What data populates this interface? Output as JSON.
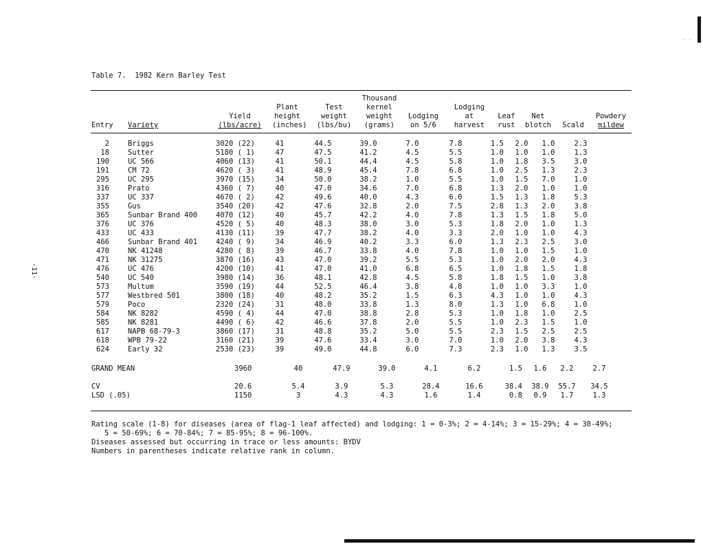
{
  "title": "Table 7.  1982 Kern Barley Test",
  "page_number": "-11-",
  "headers": {
    "entry": [
      "",
      "",
      "",
      "Entry"
    ],
    "variety": [
      "",
      "",
      "",
      "Variety"
    ],
    "yield": [
      "",
      "",
      "Yield",
      "(lbs/acre)"
    ],
    "plant_height": [
      "",
      "Plant",
      "height",
      "(inches)"
    ],
    "test_weight": [
      "",
      "Test",
      "weight",
      "(lbs/bu)"
    ],
    "kernel_weight": [
      "Thousand",
      "kernel",
      "weight",
      "(grams)"
    ],
    "lodging_56": [
      "",
      "",
      "Lodging",
      "on 5/6"
    ],
    "lodging_harvest": [
      "",
      "Lodging",
      "at",
      "harvest"
    ],
    "leaf_rust": [
      "",
      "",
      "Leaf",
      "rust"
    ],
    "net_blotch": [
      "",
      "",
      "Net",
      "blotch"
    ],
    "scald": [
      "",
      "",
      "",
      "Scald"
    ],
    "powdery_mildew": [
      "",
      "",
      "Powdery",
      "mildew"
    ]
  },
  "rows": [
    {
      "entry": "2",
      "variety": "Briggs",
      "yield": "3020 (22)",
      "plant_height": "41",
      "test_weight": "44.5",
      "kernel_weight": "39.0",
      "lodging_56": "7.0",
      "lodging_harvest": "7.8",
      "leaf_rust": "1.5",
      "net_blotch": "2.0",
      "scald": "1.0",
      "powdery_mildew": "2.3"
    },
    {
      "entry": "18",
      "variety": "Sutter",
      "yield": "5180 ( 1)",
      "plant_height": "47",
      "test_weight": "47.5",
      "kernel_weight": "41.2",
      "lodging_56": "4.5",
      "lodging_harvest": "5.5",
      "leaf_rust": "1.0",
      "net_blotch": "1.0",
      "scald": "1.0",
      "powdery_mildew": "1.3"
    },
    {
      "entry": "190",
      "variety": "UC 566",
      "yield": "4060 (13)",
      "plant_height": "41",
      "test_weight": "50.1",
      "kernel_weight": "44.4",
      "lodging_56": "4.5",
      "lodging_harvest": "5.8",
      "leaf_rust": "1.0",
      "net_blotch": "1.8",
      "scald": "3.5",
      "powdery_mildew": "3.0"
    },
    {
      "entry": "191",
      "variety": "CM 72",
      "yield": "4620 ( 3)",
      "plant_height": "41",
      "test_weight": "48.9",
      "kernel_weight": "45.4",
      "lodging_56": "7.8",
      "lodging_harvest": "6.8",
      "leaf_rust": "1.0",
      "net_blotch": "2.5",
      "scald": "1.3",
      "powdery_mildew": "2.3"
    },
    {
      "entry": "295",
      "variety": "UC 295",
      "yield": "3970 (15)",
      "plant_height": "34",
      "test_weight": "50.0",
      "kernel_weight": "38.2",
      "lodging_56": "1.0",
      "lodging_harvest": "5.5",
      "leaf_rust": "1.0",
      "net_blotch": "1.5",
      "scald": "7.0",
      "powdery_mildew": "1.0"
    },
    {
      "entry": "316",
      "variety": "Prato",
      "yield": "4360 ( 7)",
      "plant_height": "40",
      "test_weight": "47.0",
      "kernel_weight": "34.6",
      "lodging_56": "7.0",
      "lodging_harvest": "6.8",
      "leaf_rust": "1.3",
      "net_blotch": "2.0",
      "scald": "1.0",
      "powdery_mildew": "1.0"
    },
    {
      "entry": "337",
      "variety": "UC 337",
      "yield": "4670 ( 2)",
      "plant_height": "42",
      "test_weight": "49.6",
      "kernel_weight": "40.0",
      "lodging_56": "4.3",
      "lodging_harvest": "6.0",
      "leaf_rust": "1.5",
      "net_blotch": "1.3",
      "scald": "1.8",
      "powdery_mildew": "5.3"
    },
    {
      "entry": "355",
      "variety": "Gus",
      "yield": "3540 (20)",
      "plant_height": "42",
      "test_weight": "47.6",
      "kernel_weight": "32.8",
      "lodging_56": "2.0",
      "lodging_harvest": "7.5",
      "leaf_rust": "2.8",
      "net_blotch": "1.3",
      "scald": "2.0",
      "powdery_mildew": "3.8"
    },
    {
      "entry": "365",
      "variety": "Sunbar Brand 400",
      "yield": "4070 (12)",
      "plant_height": "40",
      "test_weight": "45.7",
      "kernel_weight": "42.2",
      "lodging_56": "4.0",
      "lodging_harvest": "7.8",
      "leaf_rust": "1.3",
      "net_blotch": "1.5",
      "scald": "1.8",
      "powdery_mildew": "5.0"
    },
    {
      "entry": "376",
      "variety": "UC 376",
      "yield": "4520 ( 5)",
      "plant_height": "40",
      "test_weight": "48.3",
      "kernel_weight": "38.0",
      "lodging_56": "3.0",
      "lodging_harvest": "5.3",
      "leaf_rust": "1.8",
      "net_blotch": "2.0",
      "scald": "1.0",
      "powdery_mildew": "1.3"
    },
    {
      "entry": "433",
      "variety": "UC 433",
      "yield": "4130 (11)",
      "plant_height": "39",
      "test_weight": "47.7",
      "kernel_weight": "38.2",
      "lodging_56": "4.0",
      "lodging_harvest": "3.3",
      "leaf_rust": "2.0",
      "net_blotch": "1.0",
      "scald": "1.0",
      "powdery_mildew": "4.3"
    },
    {
      "entry": "466",
      "variety": "Sunbar Brand 401",
      "yield": "4240 ( 9)",
      "plant_height": "34",
      "test_weight": "46.9",
      "kernel_weight": "40.2",
      "lodging_56": "3.3",
      "lodging_harvest": "6.0",
      "leaf_rust": "1.3",
      "net_blotch": "2.3",
      "scald": "2.5",
      "powdery_mildew": "3.0"
    },
    {
      "entry": "470",
      "variety": "NK 41248",
      "yield": "4280 ( 8)",
      "plant_height": "39",
      "test_weight": "46.7",
      "kernel_weight": "33.8",
      "lodging_56": "4.0",
      "lodging_harvest": "7.8",
      "leaf_rust": "1.0",
      "net_blotch": "1.0",
      "scald": "1.5",
      "powdery_mildew": "1.0"
    },
    {
      "entry": "471",
      "variety": "NK 31275",
      "yield": "3870 (16)",
      "plant_height": "43",
      "test_weight": "47.0",
      "kernel_weight": "39.2",
      "lodging_56": "5.5",
      "lodging_harvest": "5.3",
      "leaf_rust": "1.0",
      "net_blotch": "2.0",
      "scald": "2.0",
      "powdery_mildew": "4.3"
    },
    {
      "entry": "476",
      "variety": "UC 476",
      "yield": "4200 (10)",
      "plant_height": "41",
      "test_weight": "47.0",
      "kernel_weight": "41.0",
      "lodging_56": "6.8",
      "lodging_harvest": "6.5",
      "leaf_rust": "1.0",
      "net_blotch": "1.8",
      "scald": "1.5",
      "powdery_mildew": "1.8"
    },
    {
      "entry": "540",
      "variety": "UC 540",
      "yield": "3980 (14)",
      "plant_height": "36",
      "test_weight": "48.1",
      "kernel_weight": "42.8",
      "lodging_56": "4.5",
      "lodging_harvest": "5.8",
      "leaf_rust": "1.8",
      "net_blotch": "1.5",
      "scald": "1.0",
      "powdery_mildew": "3.8"
    },
    {
      "entry": "573",
      "variety": "Multum",
      "yield": "3590 (19)",
      "plant_height": "44",
      "test_weight": "52.5",
      "kernel_weight": "46.4",
      "lodging_56": "3.8",
      "lodging_harvest": "4.8",
      "leaf_rust": "1.0",
      "net_blotch": "1.0",
      "scald": "3.3",
      "powdery_mildew": "1.0"
    },
    {
      "entry": "577",
      "variety": "Westbred 501",
      "yield": "3800 (18)",
      "plant_height": "40",
      "test_weight": "48.2",
      "kernel_weight": "35.2",
      "lodging_56": "1.5",
      "lodging_harvest": "6.3",
      "leaf_rust": "4.3",
      "net_blotch": "1.0",
      "scald": "1.0",
      "powdery_mildew": "4.3"
    },
    {
      "entry": "579",
      "variety": "Poco",
      "yield": "2320 (24)",
      "plant_height": "31",
      "test_weight": "48.0",
      "kernel_weight": "33.8",
      "lodging_56": "1.3",
      "lodging_harvest": "8.0",
      "leaf_rust": "1.3",
      "net_blotch": "1.0",
      "scald": "6.8",
      "powdery_mildew": "1.0"
    },
    {
      "entry": "584",
      "variety": "NK 8282",
      "yield": "4590 ( 4)",
      "plant_height": "44",
      "test_weight": "47.0",
      "kernel_weight": "38.8",
      "lodging_56": "2.8",
      "lodging_harvest": "5.3",
      "leaf_rust": "1.0",
      "net_blotch": "1.8",
      "scald": "1.0",
      "powdery_mildew": "2.5"
    },
    {
      "entry": "585",
      "variety": "NK 8281",
      "yield": "4490 ( 6)",
      "plant_height": "42",
      "test_weight": "46.6",
      "kernel_weight": "37.8",
      "lodging_56": "2.0",
      "lodging_harvest": "5.5",
      "leaf_rust": "1.0",
      "net_blotch": "2.3",
      "scald": "1.5",
      "powdery_mildew": "1.0"
    },
    {
      "entry": "617",
      "variety": "NAPB 68-79-3",
      "yield": "3860 (17)",
      "plant_height": "31",
      "test_weight": "48.8",
      "kernel_weight": "35.2",
      "lodging_56": "5.0",
      "lodging_harvest": "5.5",
      "leaf_rust": "2.3",
      "net_blotch": "1.5",
      "scald": "2.5",
      "powdery_mildew": "2.5"
    },
    {
      "entry": "618",
      "variety": "WPB 79-22",
      "yield": "3160 (21)",
      "plant_height": "39",
      "test_weight": "47.6",
      "kernel_weight": "33.4",
      "lodging_56": "3.0",
      "lodging_harvest": "7.0",
      "leaf_rust": "1.0",
      "net_blotch": "2.0",
      "scald": "3.8",
      "powdery_mildew": "4.3"
    },
    {
      "entry": "624",
      "variety": "Early 32",
      "yield": "2530 (23)",
      "plant_height": "39",
      "test_weight": "49.0",
      "kernel_weight": "44.8",
      "lodging_56": "6.0",
      "lodging_harvest": "7.3",
      "leaf_rust": "2.3",
      "net_blotch": "1.0",
      "scald": "1.3",
      "powdery_mildew": "3.5"
    }
  ],
  "summary": [
    {
      "label": "GRAND MEAN",
      "yield": "3960",
      "plant_height": "40",
      "test_weight": "47.9",
      "kernel_weight": "39.0",
      "lodging_56": "4.1",
      "lodging_harvest": "6.2",
      "leaf_rust": "1.5",
      "net_blotch": "1.6",
      "scald": "2.2",
      "powdery_mildew": "2.7"
    },
    {
      "label": "CV",
      "yield": "20.6",
      "plant_height": "5.4",
      "test_weight": "3.9",
      "kernel_weight": "5.3",
      "lodging_56": "28.4",
      "lodging_harvest": "16.6",
      "leaf_rust": "38.4",
      "net_blotch": "38.9",
      "scald": "55.7",
      "powdery_mildew": "34.5"
    },
    {
      "label": "LSD (.05)",
      "yield": "1150",
      "plant_height": "3",
      "test_weight": "4.3",
      "kernel_weight": "4.3",
      "lodging_56": "1.6",
      "lodging_harvest": "1.4",
      "leaf_rust": "0.8",
      "net_blotch": "0.9",
      "scald": "1.7",
      "powdery_mildew": "1.3"
    }
  ],
  "notes": [
    "Rating scale (1-8) for diseases (area of flag-1 leaf affected) and lodging: 1 = 0-3%; 2 = 4-14%; 3 = 15-29%; 4 = 30-49%;",
    "   5 = 50-69%; 6 = 70-84%; 7 = 85-95%; 8 = 96-100%.",
    "Diseases assessed but occurring in trace or less amounts: BYDV",
    "Numbers in parentheses indicate relative rank in column."
  ]
}
